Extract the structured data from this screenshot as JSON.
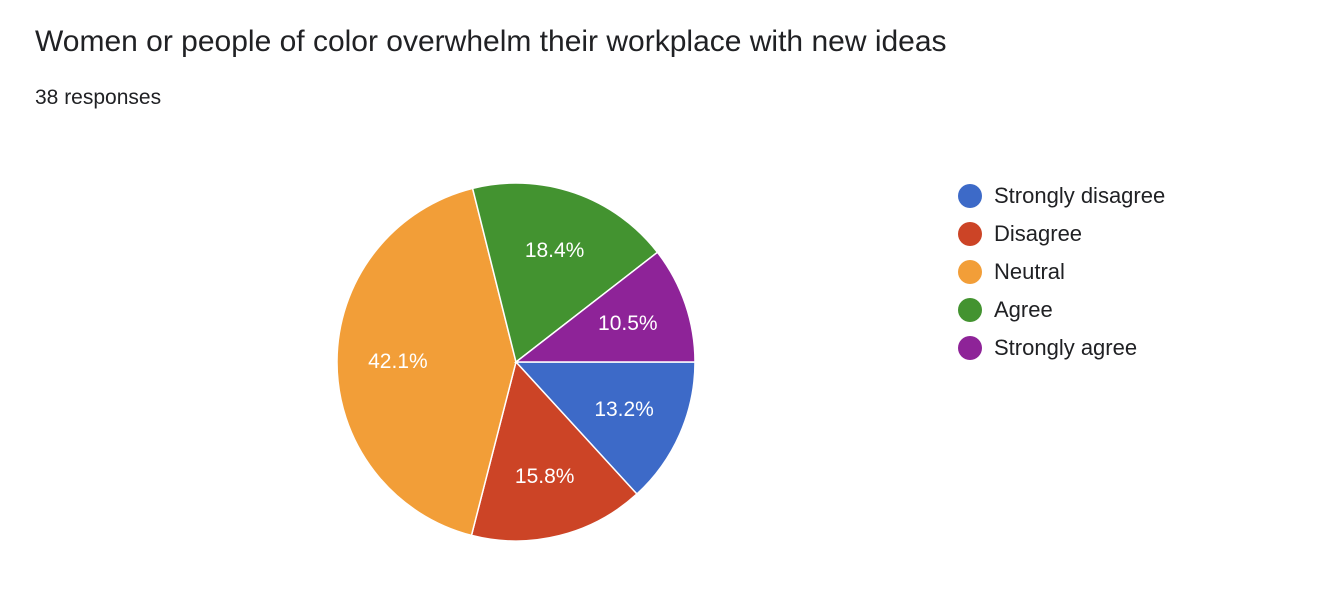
{
  "title": "Women or people of color overwhelm their workplace with new ideas",
  "subtitle": "38 responses",
  "chart_data": {
    "type": "pie",
    "total_responses": 38,
    "legend_position": "right",
    "slices": [
      {
        "name": "Strongly disagree",
        "percent": 13.2,
        "label": "13.2%",
        "color": "#3d6ac8"
      },
      {
        "name": "Disagree",
        "percent": 15.8,
        "label": "15.8%",
        "color": "#cc4426"
      },
      {
        "name": "Neutral",
        "percent": 42.1,
        "label": "42.1%",
        "color": "#f29e38"
      },
      {
        "name": "Agree",
        "percent": 18.4,
        "label": "18.4%",
        "color": "#439330"
      },
      {
        "name": "Strongly agree",
        "percent": 10.5,
        "label": "10.5%",
        "color": "#8e2398"
      }
    ]
  }
}
